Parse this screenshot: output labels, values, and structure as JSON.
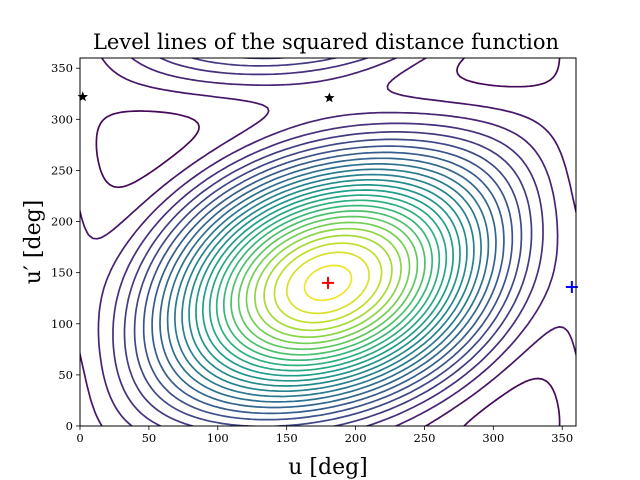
{
  "chart_data": {
    "type": "contour",
    "title": "Level lines of the squared distance function",
    "xlabel": "u [deg]",
    "ylabel": "u′ [deg]",
    "xlim": [
      0,
      360
    ],
    "ylim": [
      0,
      360
    ],
    "xticks": [
      0,
      50,
      100,
      150,
      200,
      250,
      300,
      350
    ],
    "yticks": [
      0,
      50,
      100,
      150,
      200,
      250,
      300,
      350
    ],
    "grid": false,
    "colormap": "viridis",
    "levels": 26,
    "markers": [
      {
        "kind": "plus",
        "color": "#ff0000",
        "x": 180,
        "y": 140
      },
      {
        "kind": "plus",
        "color": "#0000ff",
        "x": 357,
        "y": 136
      },
      {
        "kind": "star",
        "color": "#000000",
        "x": 181,
        "y": 321
      },
      {
        "kind": "star",
        "color": "#000000",
        "x": 2,
        "y": 322
      }
    ]
  }
}
